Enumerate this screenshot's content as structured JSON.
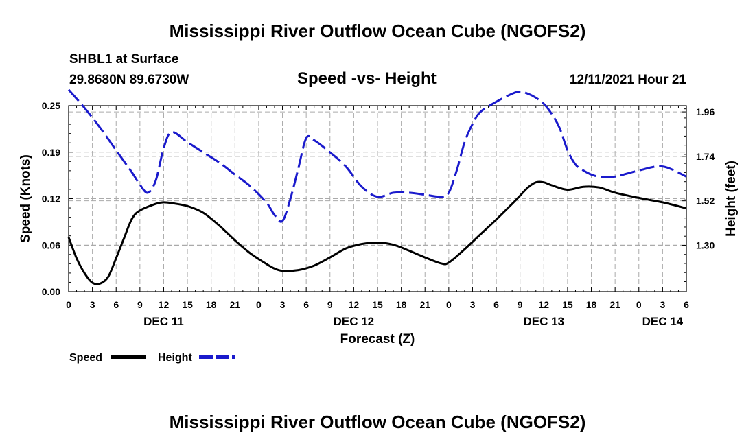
{
  "page": {
    "title": "Mississippi River Outflow Ocean Cube (NGOFS2)",
    "station": "SHBL1 at Surface",
    "coords": "29.8680N  89.6730W",
    "subtitle": "Speed -vs- Height",
    "datetime": "12/11/2021 Hour 21",
    "footer_title": "Mississippi River Outflow Ocean Cube (NGOFS2)"
  },
  "colors": {
    "speed": "#000000",
    "height": "#1a1acc",
    "grid": "#aaaaaa"
  },
  "chart_data": {
    "type": "line",
    "title": "Speed -vs- Height",
    "xlabel": "Forecast (Z)",
    "ylabel": "Speed (Knots)",
    "y2label": "Height (feet)",
    "x_unit": "hours since 2021-12-11 00Z",
    "xlim": [
      0,
      78
    ],
    "ylim": [
      0,
      0.25
    ],
    "y2lim": [
      1.0707,
      1.9908
    ],
    "x_ticks": [
      {
        "x": 0,
        "label": "0"
      },
      {
        "x": 3,
        "label": "3"
      },
      {
        "x": 6,
        "label": "6"
      },
      {
        "x": 9,
        "label": "9"
      },
      {
        "x": 12,
        "label": "12"
      },
      {
        "x": 15,
        "label": "15"
      },
      {
        "x": 18,
        "label": "18"
      },
      {
        "x": 21,
        "label": "21"
      },
      {
        "x": 24,
        "label": "0"
      },
      {
        "x": 27,
        "label": "3"
      },
      {
        "x": 30,
        "label": "6"
      },
      {
        "x": 33,
        "label": "9"
      },
      {
        "x": 36,
        "label": "12"
      },
      {
        "x": 39,
        "label": "15"
      },
      {
        "x": 42,
        "label": "18"
      },
      {
        "x": 45,
        "label": "21"
      },
      {
        "x": 48,
        "label": "0"
      },
      {
        "x": 51,
        "label": "3"
      },
      {
        "x": 54,
        "label": "6"
      },
      {
        "x": 57,
        "label": "9"
      },
      {
        "x": 60,
        "label": "12"
      },
      {
        "x": 63,
        "label": "15"
      },
      {
        "x": 66,
        "label": "18"
      },
      {
        "x": 69,
        "label": "21"
      },
      {
        "x": 72,
        "label": "0"
      },
      {
        "x": 75,
        "label": "3"
      },
      {
        "x": 78,
        "label": "6"
      }
    ],
    "day_labels": [
      {
        "x": 12,
        "label": "DEC 11"
      },
      {
        "x": 36,
        "label": "DEC 12"
      },
      {
        "x": 60,
        "label": "DEC 13"
      },
      {
        "x": 75,
        "label": "DEC 14"
      }
    ],
    "y_ticks": [
      {
        "v": 0.0,
        "label": "0.00"
      },
      {
        "v": 0.0625,
        "label": "0.06"
      },
      {
        "v": 0.125,
        "label": "0.12"
      },
      {
        "v": 0.1875,
        "label": "0.19"
      },
      {
        "v": 0.25,
        "label": "0.25"
      }
    ],
    "y2_ticks": [
      {
        "v": 1.3,
        "label": "1.30"
      },
      {
        "v": 1.52,
        "label": "1.52"
      },
      {
        "v": 1.74,
        "label": "1.74"
      },
      {
        "v": 1.96,
        "label": "1.96"
      }
    ],
    "legend": {
      "placement": "bottom-left",
      "speed_label": "Speed",
      "height_label": "Height"
    },
    "series": [
      {
        "name": "Speed",
        "axis": "left",
        "style": "solid",
        "x": [
          0,
          1,
          2,
          3,
          4,
          5,
          6,
          7,
          8,
          9,
          11,
          12,
          13,
          15,
          17,
          19,
          21,
          23,
          25,
          26,
          27,
          29,
          31,
          33,
          35,
          37,
          39,
          41,
          43,
          45,
          47,
          48,
          50,
          52,
          54,
          56,
          57,
          58,
          59,
          60,
          61,
          63,
          65,
          67,
          69,
          72,
          75,
          78
        ],
        "y": [
          0.073,
          0.045,
          0.025,
          0.012,
          0.011,
          0.02,
          0.045,
          0.072,
          0.098,
          0.109,
          0.118,
          0.12,
          0.119,
          0.115,
          0.106,
          0.089,
          0.069,
          0.051,
          0.037,
          0.031,
          0.028,
          0.029,
          0.035,
          0.046,
          0.058,
          0.064,
          0.066,
          0.063,
          0.055,
          0.046,
          0.038,
          0.039,
          0.057,
          0.077,
          0.097,
          0.118,
          0.129,
          0.14,
          0.147,
          0.147,
          0.143,
          0.137,
          0.141,
          0.14,
          0.133,
          0.126,
          0.12,
          0.112
        ]
      },
      {
        "name": "Height",
        "axis": "right",
        "style": "dashed",
        "x": [
          0,
          2,
          4,
          6,
          8,
          9,
          10,
          11,
          12,
          13,
          15,
          17,
          19,
          21,
          23,
          25,
          26,
          27,
          28,
          29,
          30,
          31,
          33,
          35,
          37,
          39,
          41,
          43,
          45,
          47,
          48,
          49,
          50,
          51,
          52,
          54,
          56,
          57,
          58,
          59,
          60,
          61,
          62,
          63,
          64,
          65,
          66,
          67,
          69,
          72,
          75,
          78
        ],
        "y": [
          2.07,
          1.98,
          1.88,
          1.77,
          1.66,
          1.6,
          1.56,
          1.62,
          1.78,
          1.86,
          1.81,
          1.76,
          1.71,
          1.65,
          1.59,
          1.51,
          1.45,
          1.42,
          1.53,
          1.68,
          1.83,
          1.82,
          1.76,
          1.69,
          1.59,
          1.54,
          1.56,
          1.56,
          1.55,
          1.54,
          1.56,
          1.67,
          1.81,
          1.9,
          1.96,
          2.01,
          2.05,
          2.06,
          2.05,
          2.03,
          2.0,
          1.95,
          1.88,
          1.77,
          1.7,
          1.67,
          1.65,
          1.64,
          1.64,
          1.67,
          1.69,
          1.64
        ]
      }
    ]
  }
}
